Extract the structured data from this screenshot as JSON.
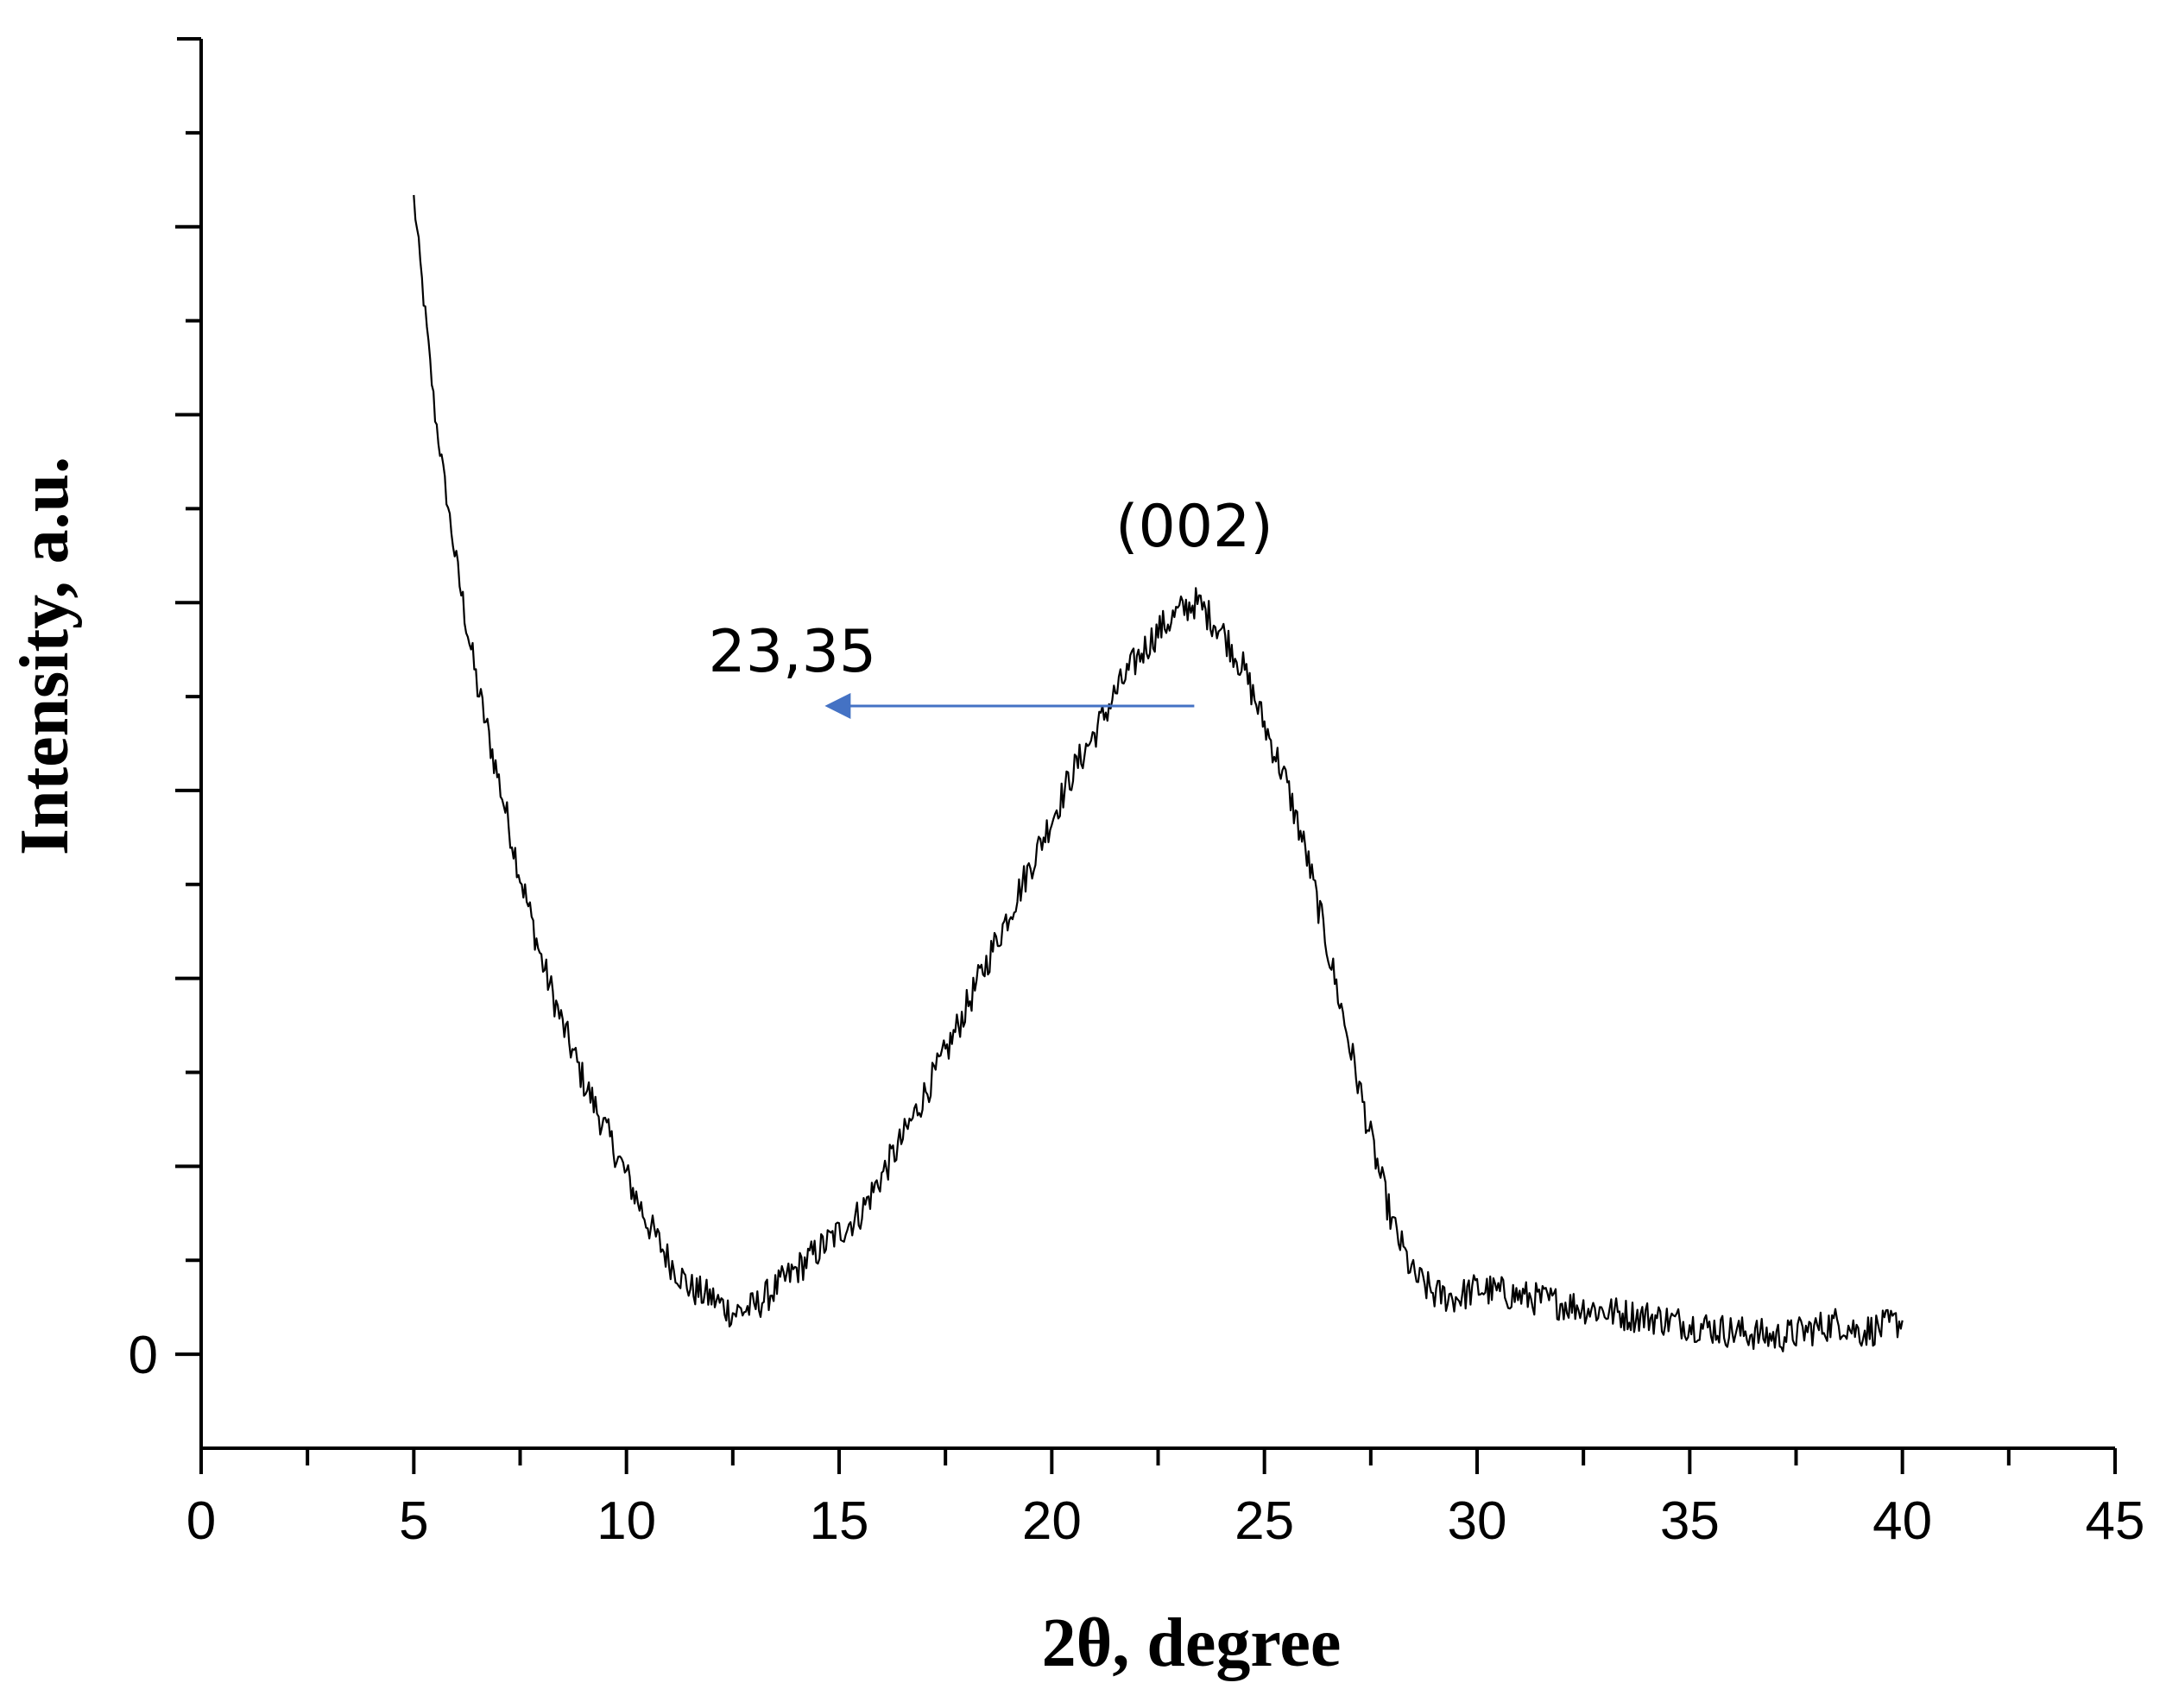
{
  "chart_data": {
    "type": "line",
    "title": "",
    "xlabel": "2θ, degree",
    "ylabel": "Intensity, a.u.",
    "xlim": [
      0,
      45
    ],
    "ylim": [
      -5,
      70
    ],
    "x_ticks": [
      0,
      5,
      10,
      15,
      20,
      25,
      30,
      35,
      40,
      45
    ],
    "x_tick_labels": [
      "0",
      "5",
      "10",
      "15",
      "20",
      "25",
      "30",
      "35",
      "40",
      "45"
    ],
    "y_tick_labels": [
      "0"
    ],
    "grid": false,
    "legend": "none",
    "series": [
      {
        "color": "#000000",
        "x": [
          5,
          5.5,
          6,
          6.5,
          7,
          7.5,
          8,
          8.5,
          9,
          9.5,
          10,
          10.5,
          11,
          11.5,
          12,
          12.5,
          13,
          13.5,
          14,
          14.5,
          15,
          15.5,
          16,
          16.5,
          17,
          17.5,
          18,
          18.5,
          19,
          19.5,
          20,
          20.5,
          21,
          21.5,
          22,
          22.5,
          23,
          23.35,
          23.5,
          24,
          24.5,
          25,
          25.5,
          26,
          26.5,
          27,
          27.5,
          28,
          28.5,
          29,
          29.5,
          30,
          30.5,
          31,
          31.5,
          32,
          32.5,
          33,
          33.5,
          34,
          34.5,
          35,
          35.5,
          36,
          36.5,
          37,
          37.5,
          38,
          38.5,
          39,
          39.5,
          40
        ],
        "y": [
          61.5,
          50,
          42,
          35.5,
          30.5,
          25.5,
          21,
          17.5,
          14.5,
          12,
          9.5,
          7,
          5,
          3.5,
          3,
          2.2,
          2.5,
          3.5,
          4.5,
          5.5,
          6.5,
          7.5,
          9.5,
          11.5,
          13.8,
          16,
          18.5,
          21,
          23.5,
          26,
          28.5,
          31,
          33,
          35.2,
          37,
          38.5,
          39.5,
          40,
          39.8,
          38.5,
          36.5,
          33.5,
          30.5,
          26.5,
          21.5,
          16.5,
          11.5,
          7,
          4.2,
          3.2,
          3,
          3.5,
          3.3,
          3.1,
          2.9,
          2.7,
          2.5,
          2.3,
          2.1,
          2,
          1.8,
          1.6,
          1.4,
          1.2,
          1.1,
          0.9,
          1.1,
          1.4,
          1.7,
          1.2,
          1.4,
          1.8
        ]
      }
    ],
    "annotations": [
      {
        "text": "(002)",
        "x": 23.35,
        "y": 43
      },
      {
        "text": "23,35",
        "x_from": 23.35,
        "x_to": 14.5,
        "y": 34.5,
        "color": "#4472c4"
      }
    ]
  }
}
